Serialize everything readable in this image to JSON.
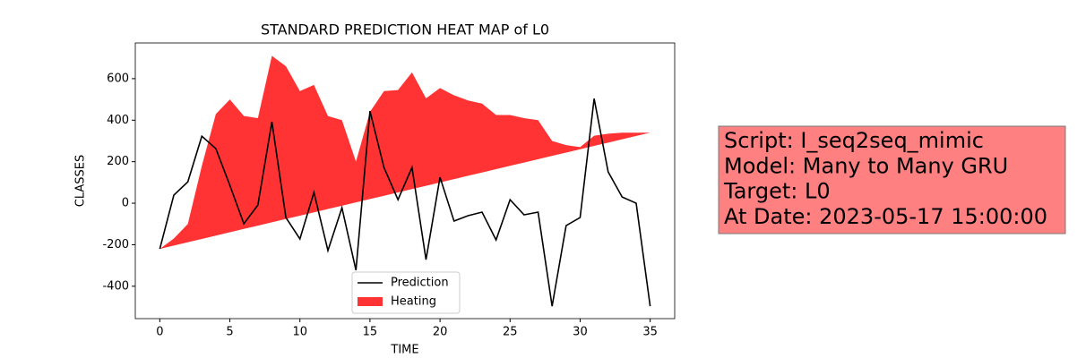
{
  "chart_data": {
    "type": "line_area",
    "title": "STANDARD PREDICTION HEAT MAP of L0",
    "x_label": "TIME",
    "y_label": "CLASSES",
    "x": [
      0,
      1,
      2,
      3,
      4,
      5,
      6,
      7,
      8,
      9,
      10,
      11,
      12,
      13,
      14,
      15,
      16,
      17,
      18,
      19,
      20,
      21,
      22,
      23,
      24,
      25,
      26,
      27,
      28,
      29,
      30,
      31,
      32,
      33,
      34,
      35
    ],
    "series": [
      {
        "name": "Prediction",
        "color": "#000000",
        "values": [
          -220,
          39,
          103,
          323,
          263,
          86,
          -99,
          -9,
          392,
          -69,
          -172,
          52,
          -228,
          -22,
          -323,
          444,
          172,
          17,
          172,
          -272,
          125,
          -86,
          -60,
          -43,
          -177,
          17,
          -56,
          -43,
          -496,
          -108,
          -69,
          504,
          151,
          30,
          0,
          -496
        ]
      },
      {
        "name": "Heating",
        "color": "#ff0000",
        "upper": [
          -220,
          -170,
          -100,
          180,
          430,
          500,
          420,
          410,
          710,
          660,
          540,
          570,
          420,
          400,
          200,
          440,
          540,
          545,
          630,
          505,
          555,
          520,
          495,
          480,
          425,
          425,
          410,
          400,
          300,
          280,
          270,
          325,
          335,
          340,
          340,
          340
        ],
        "lower": [
          -220,
          -204,
          -188,
          -172,
          -156,
          -140,
          -124,
          -108,
          -92,
          -76,
          -60,
          -44,
          -28,
          -12,
          4,
          20,
          36,
          52,
          68,
          84,
          100,
          116,
          132,
          148,
          164,
          180,
          196,
          212,
          228,
          244,
          260,
          276,
          292,
          308,
          324,
          340
        ]
      }
    ],
    "xlim": [
      -1.75,
      36.75
    ],
    "xticks": [
      0,
      5,
      10,
      15,
      20,
      25,
      30,
      35
    ],
    "ylim": [
      -556,
      772
    ],
    "yticks": [
      -400,
      -200,
      0,
      200,
      400,
      600
    ],
    "legend": "lower center",
    "annotation": [
      "Script: I_seq2seq_mimic",
      "Model: Many to Many GRU",
      "Target: L0",
      "At Date: 2023-05-17 15:00:00"
    ]
  }
}
